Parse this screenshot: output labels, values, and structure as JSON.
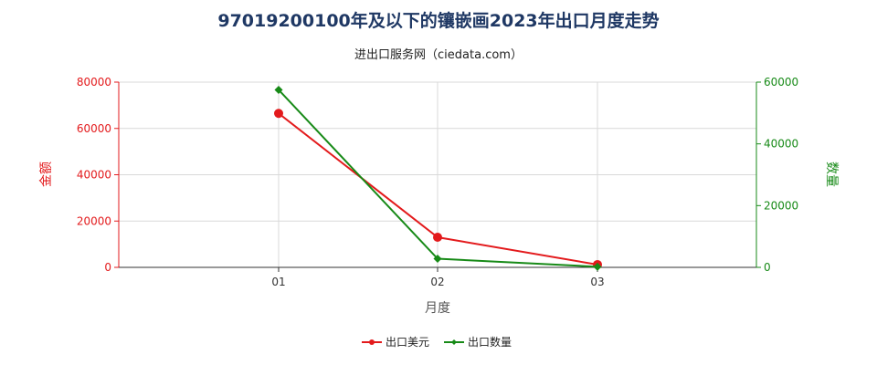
{
  "chart_data": {
    "type": "line",
    "title": "97019200100年及以下的镶嵌画2023年出口月度走势",
    "subtitle": "进出口服务网（ciedata.com）",
    "xlabel": "月度",
    "ylabel_left": "金额",
    "ylabel_right": "数量",
    "categories": [
      "01",
      "02",
      "03"
    ],
    "y_left": {
      "ylim": [
        0,
        80000
      ],
      "ticks": [
        "0",
        "20000",
        "40000",
        "60000",
        "80000"
      ]
    },
    "y_right": {
      "ylim": [
        0,
        60000
      ],
      "ticks": [
        "0",
        "20000",
        "40000",
        "60000"
      ]
    },
    "grid": true,
    "legend_position": "bottom",
    "series": [
      {
        "name": "出口美元",
        "axis": "left",
        "color": "#e31a1c",
        "marker": "circle",
        "values": [
          66500,
          13000,
          1200
        ]
      },
      {
        "name": "出口数量",
        "axis": "right",
        "color": "#178a17",
        "marker": "diamond",
        "values": [
          57500,
          2800,
          200
        ]
      }
    ]
  }
}
